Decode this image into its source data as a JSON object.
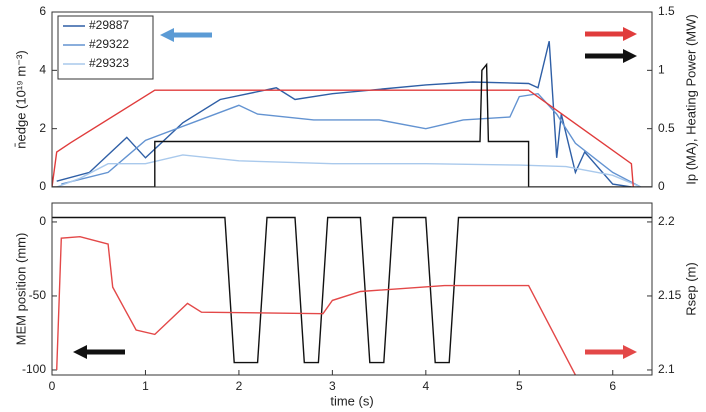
{
  "chart_data": [
    {
      "type": "line",
      "ylabel": "n̄edge (10¹⁹ m⁻³)",
      "y2label": "Ip (MA), Heating Power (MW)",
      "xlim": [
        0,
        6.42
      ],
      "ylim": [
        0,
        6
      ],
      "yticks": [
        0,
        2,
        4,
        6
      ],
      "y2lim": [
        0,
        1.5
      ],
      "y2ticks": [
        0,
        0.5,
        1,
        1.5
      ],
      "legend": "upper left",
      "series": [
        {
          "name": "#29887",
          "color": "#2f5fa6",
          "x": [
            0.05,
            0.4,
            0.8,
            1.0,
            1.4,
            1.8,
            2.4,
            2.6,
            3.0,
            4.0,
            4.5,
            5.1,
            5.2,
            5.32,
            5.4,
            5.45,
            5.6,
            5.7,
            6.0,
            6.2
          ],
          "values": [
            0.2,
            0.5,
            1.7,
            1.0,
            2.2,
            3.0,
            3.4,
            3.0,
            3.2,
            3.5,
            3.6,
            3.55,
            3.4,
            5.0,
            1.0,
            2.5,
            0.5,
            1.2,
            0.1,
            0
          ]
        },
        {
          "name": "#29322",
          "color": "#6393d1",
          "x": [
            0.1,
            0.6,
            1.0,
            1.5,
            2.0,
            2.2,
            2.8,
            3.5,
            4.0,
            4.4,
            4.9,
            5.0,
            5.2,
            5.4,
            5.6,
            6.0,
            6.3
          ],
          "values": [
            0.1,
            0.5,
            1.6,
            2.2,
            2.8,
            2.5,
            2.3,
            2.3,
            2.0,
            2.3,
            2.4,
            3.1,
            3.2,
            2.5,
            1.5,
            0.5,
            0
          ]
        },
        {
          "name": "#29323",
          "color": "#a9c9ec",
          "x": [
            0.05,
            0.3,
            0.6,
            1.0,
            1.4,
            2.0,
            3.0,
            4.0,
            5.0,
            5.5,
            6.0,
            6.3
          ],
          "values": [
            0,
            0.3,
            0.8,
            0.8,
            1.1,
            0.9,
            0.8,
            0.8,
            0.75,
            0.7,
            0.4,
            0
          ]
        },
        {
          "color": "#e03c3c",
          "axis": "y2",
          "x": [
            0,
            0.05,
            0.2,
            1.1,
            2.5,
            5.1,
            6.2,
            6.22
          ],
          "values": [
            0,
            0.3,
            0.38,
            0.83,
            0.83,
            0.83,
            0.2,
            0
          ]
        },
        {
          "color": "#111111",
          "axis": "y2",
          "x": [
            0,
            1.1,
            1.1,
            4.58,
            4.6,
            4.65,
            4.67,
            5.1,
            5.1,
            6.42
          ],
          "values": [
            0,
            0,
            0.39,
            0.39,
            1.0,
            1.05,
            0.39,
            0.39,
            0,
            0
          ]
        }
      ]
    },
    {
      "type": "line",
      "xlabel": "time (s)",
      "ylabel": "MEM position (mm)",
      "y2label": "Rsep (m)",
      "xlim": [
        0,
        6.42
      ],
      "xticks": [
        0,
        1,
        2,
        3,
        4,
        5,
        6
      ],
      "ylim": [
        -103.4,
        12.8
      ],
      "yticks": [
        -100,
        -50,
        0
      ],
      "y2lim": [
        2.0966,
        2.2128
      ],
      "y2ticks": [
        2.1,
        2.15,
        2.2
      ],
      "series": [
        {
          "color": "#111111",
          "x": [
            0,
            1.85,
            1.95,
            2.2,
            2.3,
            2.6,
            2.7,
            2.85,
            2.95,
            3.3,
            3.4,
            3.55,
            3.65,
            4.0,
            4.1,
            4.25,
            4.35,
            6.42
          ],
          "values": [
            3,
            3,
            -95,
            -95,
            3,
            3,
            -95,
            -95,
            3,
            3,
            -95,
            -95,
            3,
            3,
            -95,
            -95,
            3,
            3
          ]
        },
        {
          "color": "#e34848",
          "axis": "y2",
          "x": [
            0.05,
            0.1,
            0.3,
            0.6,
            0.65,
            0.9,
            1.1,
            1.45,
            1.6,
            2.9,
            3.0,
            3.3,
            4.2,
            5.1,
            5.6
          ],
          "values": [
            2.1,
            2.189,
            2.19,
            2.185,
            2.156,
            2.127,
            2.124,
            2.145,
            2.139,
            2.138,
            2.147,
            2.153,
            2.157,
            2.157,
            2.0966
          ]
        }
      ]
    }
  ]
}
